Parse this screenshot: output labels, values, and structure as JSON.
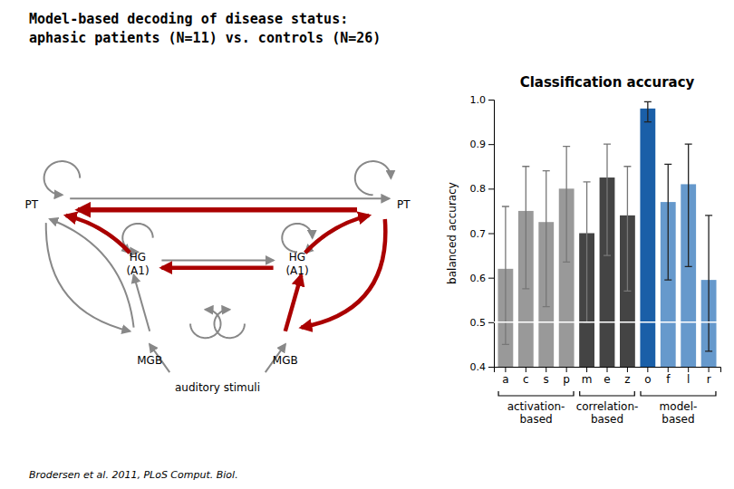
{
  "chart_data": {
    "type": "bar",
    "title": "Model-based decoding of disease status:\naphasic patients (N=11) vs. controls (N=26)",
    "subtitle": "Classification accuracy",
    "ylabel": "balanced accuracy",
    "categories": [
      "a",
      "c",
      "s",
      "p",
      "m",
      "e",
      "z",
      "o",
      "f",
      "l",
      "r"
    ],
    "values": [
      0.62,
      0.75,
      0.725,
      0.8,
      0.7,
      0.825,
      0.74,
      0.98,
      0.77,
      0.81,
      0.595
    ],
    "err_low": [
      0.17,
      0.175,
      0.19,
      0.165,
      0.2,
      0.175,
      0.17,
      0.03,
      0.175,
      0.185,
      0.16
    ],
    "err_high": [
      0.14,
      0.1,
      0.115,
      0.095,
      0.115,
      0.075,
      0.11,
      0.015,
      0.085,
      0.09,
      0.145
    ],
    "colors": [
      "#999999",
      "#999999",
      "#999999",
      "#999999",
      "#444444",
      "#444444",
      "#444444",
      "#1a5fa8",
      "#6699cc",
      "#6699cc",
      "#6699cc"
    ],
    "ylim": [
      0.4,
      1.0
    ],
    "yticks": [
      0.4,
      0.5,
      0.6,
      0.7,
      0.8,
      0.9,
      {
        "value": 1.0,
        "label": "1.0"
      }
    ],
    "grid": false,
    "reference_line": {
      "value": 0.5,
      "color": "#ffffff"
    },
    "groups": [
      {
        "label": "activation-\nbased",
        "categories": [
          "a",
          "c",
          "s",
          "p"
        ]
      },
      {
        "label": "correlation-\nbased",
        "categories": [
          "m",
          "e",
          "z"
        ]
      },
      {
        "label": "model-\nbased",
        "categories": [
          "o",
          "f",
          "l",
          "r"
        ]
      }
    ],
    "annotations": [
      "PT",
      "PT",
      "HG\n(A1)",
      "HG\n(A1)",
      "MGB",
      "MGB",
      "auditory stimuli",
      "Brodersen et al. 2011, PLoS Comput. Biol."
    ]
  }
}
